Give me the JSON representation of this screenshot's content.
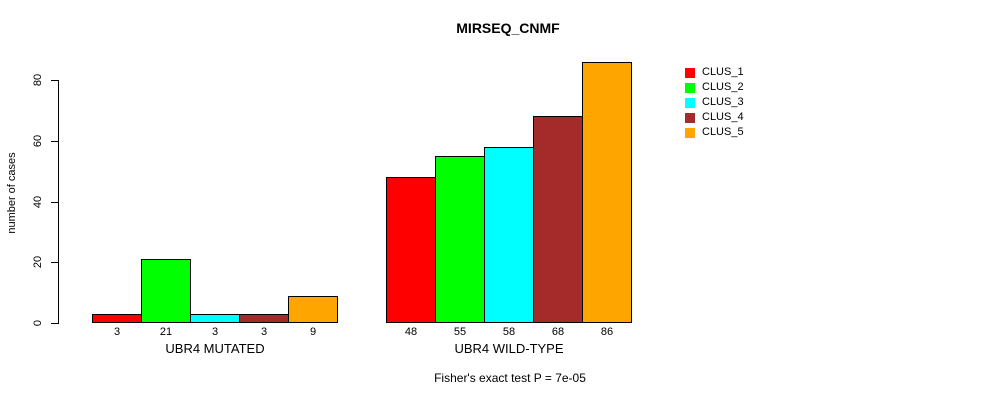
{
  "chart_data": {
    "type": "bar",
    "title": "MIRSEQ_CNMF",
    "xlabel": "",
    "ylabel": "number of cases",
    "ylim": [
      0,
      88
    ],
    "y_ticks": [
      0,
      20,
      40,
      60,
      80
    ],
    "grid": false,
    "legend_position": "top-right",
    "categories": [
      "UBR4 MUTATED",
      "UBR4 WILD-TYPE"
    ],
    "series": [
      {
        "name": "CLUS_1",
        "color": "#FF0000",
        "values": [
          3,
          48
        ]
      },
      {
        "name": "CLUS_2",
        "color": "#00FF00",
        "values": [
          21,
          55
        ]
      },
      {
        "name": "CLUS_3",
        "color": "#00FFFF",
        "values": [
          3,
          58
        ]
      },
      {
        "name": "CLUS_4",
        "color": "#A52A2A",
        "values": [
          3,
          68
        ]
      },
      {
        "name": "CLUS_5",
        "color": "#FFA500",
        "values": [
          9,
          86
        ]
      }
    ],
    "bar_value_labels": [
      [
        3,
        21,
        3,
        3,
        9
      ],
      [
        48,
        55,
        58,
        68,
        86
      ]
    ],
    "annotation": "Fisher's exact test P = 7e-05"
  }
}
